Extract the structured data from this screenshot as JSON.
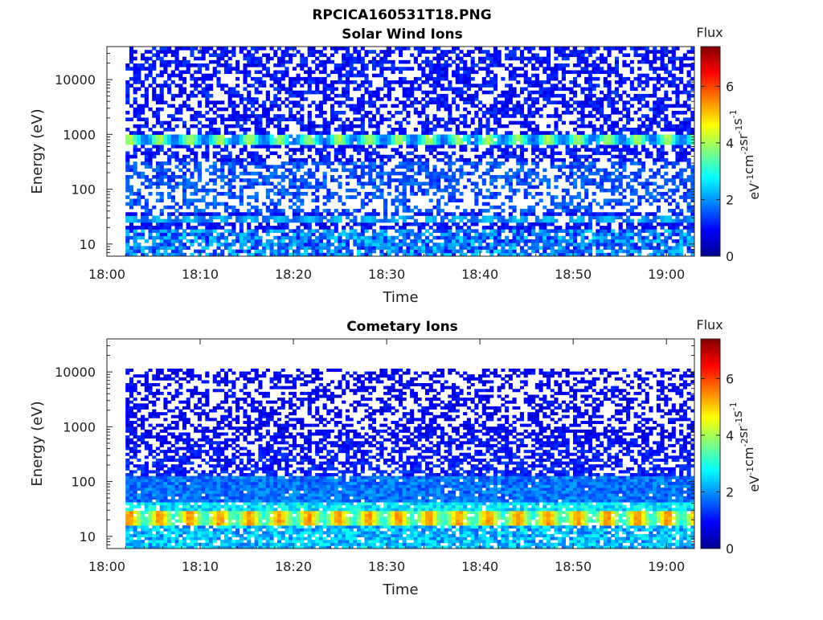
{
  "figure": {
    "title": "RPCICA160531T18.PNG"
  },
  "chart_data": [
    {
      "type": "heatmap",
      "title": "Solar Wind Ions",
      "xlabel": "Time",
      "ylabel": "Energy (eV)",
      "x_ticks": [
        "18:00",
        "18:10",
        "18:20",
        "18:30",
        "18:40",
        "18:50",
        "19:00"
      ],
      "x_range": [
        "18:00",
        "19:03"
      ],
      "y_scale": "log",
      "y_ticks": [
        10,
        100,
        1000,
        10000
      ],
      "y_range": [
        6,
        40000
      ],
      "data_x_range": [
        "18:02",
        "19:03"
      ],
      "colorbar": {
        "title": "Flux",
        "label": "eV-1cm-2sr-1s-1",
        "label_parts": [
          [
            "eV",
            "-1"
          ],
          [
            "cm",
            "-2"
          ],
          [
            "sr",
            "-1"
          ],
          [
            "s",
            "-1"
          ]
        ],
        "ticks": [
          0,
          2,
          4,
          6
        ],
        "range": [
          0,
          7.4
        ],
        "colormap": "jet"
      },
      "features": [
        {
          "energy_eV": 800,
          "flux": 3.6,
          "note": "periodic bands"
        },
        {
          "energy_eV": 28,
          "flux": 3.0,
          "note": "periodic bands"
        }
      ]
    },
    {
      "type": "heatmap",
      "title": "Cometary Ions",
      "xlabel": "Time",
      "ylabel": "Energy (eV)",
      "x_ticks": [
        "18:00",
        "18:10",
        "18:20",
        "18:30",
        "18:40",
        "18:50",
        "19:00"
      ],
      "x_range": [
        "18:00",
        "19:03"
      ],
      "y_scale": "log",
      "y_ticks": [
        10,
        100,
        1000,
        10000
      ],
      "y_range": [
        6,
        40000
      ],
      "data_x_range": [
        "18:02",
        "19:03"
      ],
      "colorbar": {
        "title": "Flux",
        "label": "eV-1cm-2sr-1s-1",
        "label_parts": [
          [
            "eV",
            "-1"
          ],
          [
            "cm",
            "-2"
          ],
          [
            "sr",
            "-1"
          ],
          [
            "s",
            "-1"
          ]
        ],
        "ticks": [
          0,
          2,
          4,
          6
        ],
        "range": [
          0,
          7.4
        ],
        "colormap": "jet"
      },
      "features": [
        {
          "energy_eV": 22,
          "flux": 5.8,
          "note": "periodic high-flux band"
        },
        {
          "energy_eV": 12,
          "flux": 2.6,
          "note": "low-energy band"
        }
      ]
    }
  ]
}
